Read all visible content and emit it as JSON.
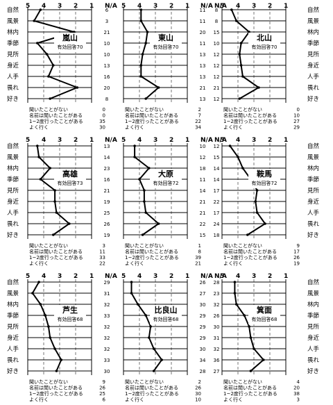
{
  "scale_labels": [
    "5",
    "4",
    "3",
    "2",
    "1",
    "N/A"
  ],
  "categories": [
    "自然",
    "風景",
    "林内",
    "季節",
    "見所",
    "身近",
    "人手",
    "畏れ",
    "好き"
  ],
  "answer_labels": [
    "聞いたことがない",
    "名前は聞いたことがある",
    "1~2度行ったことがある",
    "よく行く"
  ],
  "colors": {
    "line": "#000000",
    "dash": "#555555"
  },
  "chart_data": [
    {
      "type": "line",
      "title": "嵐山",
      "subtitle": "有効回答70",
      "values": [
        4.2,
        4.6,
        2.1,
        4.4,
        3.8,
        3.4,
        3.7,
        1.9,
        3.6
      ],
      "na": [
        6,
        3,
        21,
        10,
        10,
        13,
        16,
        20,
        8
      ],
      "answers": [
        0,
        0,
        35,
        30
      ]
    },
    {
      "type": "line",
      "title": "東山",
      "subtitle": "有効回答70",
      "values": [
        3.9,
        3.9,
        3.5,
        3.6,
        3.8,
        3.9,
        3.9,
        2.8,
        3.6
      ],
      "na": [
        11,
        11,
        20,
        11,
        13,
        13,
        13,
        21,
        13
      ],
      "answers": [
        2,
        7,
        22,
        34
      ]
    },
    {
      "type": "line",
      "title": "北山",
      "subtitle": "有効回答70",
      "values": [
        4.4,
        4.1,
        3.3,
        3.8,
        3.9,
        3.8,
        3.7,
        2.7,
        3.9
      ],
      "na": [
        8,
        8,
        15,
        10,
        12,
        12,
        12,
        21,
        12
      ],
      "answers": [
        0,
        10,
        27,
        29
      ]
    },
    {
      "type": "line",
      "title": "高雄",
      "subtitle": "有効回答73",
      "values": [
        4.4,
        4.3,
        3.6,
        4.2,
        3.3,
        3.3,
        3.2,
        2.4,
        3.4
      ],
      "na": [
        13,
        14,
        23,
        16,
        21,
        19,
        25,
        26,
        19
      ],
      "answers": [
        3,
        11,
        33,
        22
      ]
    },
    {
      "type": "line",
      "title": "大原",
      "subtitle": "有効回答72",
      "values": [
        4.3,
        4.3,
        3.4,
        4.0,
        3.7,
        3.7,
        3.6,
        2.8,
        3.8
      ],
      "na": [
        10,
        12,
        18,
        11,
        14,
        21,
        21,
        22,
        15
      ],
      "answers": [
        1,
        8,
        39,
        21
      ]
    },
    {
      "type": "line",
      "title": "鞍馬",
      "subtitle": "有効回答72",
      "values": [
        4.5,
        4.0,
        3.7,
        3.2,
        2.8,
        2.9,
        2.8,
        2.3,
        3.4
      ],
      "na": [
        12,
        15,
        14,
        14,
        17,
        22,
        17,
        24,
        18
      ],
      "answers": [
        9,
        17,
        26,
        19
      ]
    },
    {
      "type": "line",
      "title": "芦生",
      "subtitle": "有効回答68",
      "values": [
        4.3,
        4.7,
        4.2,
        3.9,
        3.7,
        3.6,
        3.3,
        2.9,
        3.2
      ],
      "na": [
        29,
        31,
        32,
        33,
        32,
        32,
        32,
        33,
        30
      ],
      "answers": [
        9,
        26,
        25,
        6
      ]
    },
    {
      "type": "line",
      "title": "比良山",
      "subtitle": "有効回答68",
      "values": [
        4.5,
        4.5,
        4.1,
        3.6,
        3.3,
        3.4,
        3.1,
        2.6,
        3.1
      ],
      "na": [
        26,
        27,
        30,
        29,
        29,
        29,
        30,
        34,
        28
      ],
      "answers": [
        2,
        26,
        30,
        10
      ]
    },
    {
      "type": "line",
      "title": "箕面",
      "subtitle": "有効回答68",
      "values": [
        4.2,
        4.2,
        4.1,
        3.6,
        3.3,
        3.2,
        3.0,
        2.4,
        3.2
      ],
      "na": [
        28,
        23,
        32,
        26,
        30,
        31,
        32,
        36,
        27
      ],
      "answers": [
        4,
        20,
        38,
        3
      ]
    }
  ]
}
